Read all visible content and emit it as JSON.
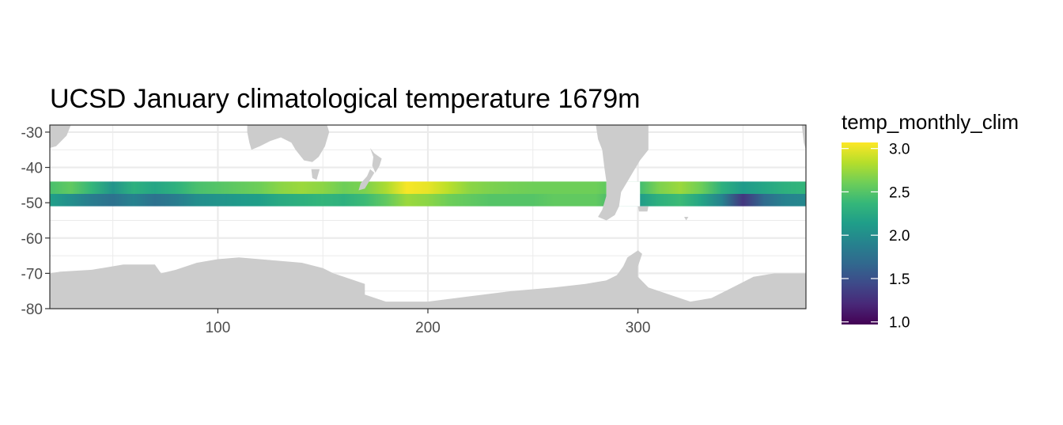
{
  "chart_data": {
    "type": "heatmap",
    "title": "UCSD January climatological temperature 1679m",
    "xlabel": "",
    "ylabel": "",
    "xlim": [
      20,
      380
    ],
    "ylim": [
      -80,
      -28
    ],
    "x_ticks": [
      100,
      200,
      300
    ],
    "x_tick_labels": [
      "100",
      "200",
      "300"
    ],
    "y_ticks": [
      -30,
      -40,
      -50,
      -60,
      -70,
      -80
    ],
    "y_tick_labels": [
      "-30",
      "-40",
      "-50",
      "-60",
      "-70",
      "-80"
    ],
    "grid": true,
    "land_color": "#cccccc",
    "band_lat_range": [
      -51,
      -44
    ],
    "band_missing_lon_ranges": [
      [
        285,
        301
      ]
    ],
    "temperature_profile": [
      {
        "lon": 20,
        "north": 2.45,
        "south": 2.15
      },
      {
        "lon": 30,
        "north": 2.55,
        "south": 2.0
      },
      {
        "lon": 40,
        "north": 2.35,
        "south": 1.85
      },
      {
        "lon": 50,
        "north": 2.05,
        "south": 1.75
      },
      {
        "lon": 60,
        "north": 2.3,
        "south": 1.9
      },
      {
        "lon": 70,
        "north": 2.2,
        "south": 1.75
      },
      {
        "lon": 80,
        "north": 2.3,
        "south": 1.85
      },
      {
        "lon": 90,
        "north": 2.45,
        "south": 2.0
      },
      {
        "lon": 100,
        "north": 2.5,
        "south": 2.05
      },
      {
        "lon": 110,
        "north": 2.55,
        "south": 2.1
      },
      {
        "lon": 120,
        "north": 2.6,
        "south": 2.15
      },
      {
        "lon": 130,
        "north": 2.7,
        "south": 2.25
      },
      {
        "lon": 140,
        "north": 2.75,
        "south": 2.3
      },
      {
        "lon": 150,
        "north": 2.7,
        "south": 2.35
      },
      {
        "lon": 160,
        "north": 2.6,
        "south": 2.3
      },
      {
        "lon": 170,
        "north": 2.65,
        "south": 2.4
      },
      {
        "lon": 180,
        "north": 2.8,
        "south": 2.55
      },
      {
        "lon": 190,
        "north": 3.05,
        "south": 2.75
      },
      {
        "lon": 200,
        "north": 3.0,
        "south": 2.7
      },
      {
        "lon": 210,
        "north": 2.85,
        "south": 2.6
      },
      {
        "lon": 220,
        "north": 2.7,
        "south": 2.55
      },
      {
        "lon": 230,
        "north": 2.65,
        "south": 2.5
      },
      {
        "lon": 240,
        "north": 2.62,
        "south": 2.5
      },
      {
        "lon": 250,
        "north": 2.6,
        "south": 2.5
      },
      {
        "lon": 260,
        "north": 2.6,
        "south": 2.55
      },
      {
        "lon": 270,
        "north": 2.6,
        "south": 2.55
      },
      {
        "lon": 280,
        "north": 2.6,
        "south": 2.55
      },
      {
        "lon": 300,
        "north": 2.4,
        "south": 2.1
      },
      {
        "lon": 310,
        "north": 2.65,
        "south": 2.3
      },
      {
        "lon": 320,
        "north": 2.75,
        "south": 2.4
      },
      {
        "lon": 330,
        "north": 2.6,
        "south": 2.2
      },
      {
        "lon": 340,
        "north": 2.3,
        "south": 1.9
      },
      {
        "lon": 350,
        "north": 2.1,
        "south": 1.3
      },
      {
        "lon": 360,
        "north": 2.2,
        "south": 1.7
      },
      {
        "lon": 370,
        "north": 2.3,
        "south": 1.9
      },
      {
        "lon": 380,
        "north": 2.35,
        "south": 1.95
      }
    ],
    "land_polygons": [
      {
        "name": "antarctica",
        "points": [
          [
            20,
            -70
          ],
          [
            25,
            -69.5
          ],
          [
            40,
            -69
          ],
          [
            55,
            -67.5
          ],
          [
            70,
            -67.5
          ],
          [
            73,
            -70
          ],
          [
            80,
            -69
          ],
          [
            90,
            -67
          ],
          [
            100,
            -66
          ],
          [
            110,
            -65.5
          ],
          [
            120,
            -66
          ],
          [
            130,
            -66.5
          ],
          [
            140,
            -67
          ],
          [
            150,
            -68.5
          ],
          [
            155,
            -70
          ],
          [
            160,
            -71
          ],
          [
            165,
            -72
          ],
          [
            170,
            -73
          ],
          [
            170,
            -76
          ],
          [
            180,
            -78
          ],
          [
            200,
            -78
          ],
          [
            220,
            -76.5
          ],
          [
            240,
            -75
          ],
          [
            260,
            -74
          ],
          [
            275,
            -73
          ],
          [
            285,
            -72
          ],
          [
            290,
            -70.5
          ],
          [
            293,
            -68
          ],
          [
            295,
            -65.5
          ],
          [
            300,
            -63.5
          ],
          [
            302,
            -64.5
          ],
          [
            300,
            -68
          ],
          [
            300,
            -71
          ],
          [
            305,
            -74
          ],
          [
            315,
            -76
          ],
          [
            325,
            -78
          ],
          [
            335,
            -77
          ],
          [
            345,
            -74
          ],
          [
            355,
            -71
          ],
          [
            365,
            -70
          ],
          [
            380,
            -70
          ],
          [
            380,
            -80
          ],
          [
            20,
            -80
          ]
        ]
      },
      {
        "name": "south-america",
        "points": [
          [
            280,
            -28
          ],
          [
            305,
            -28
          ],
          [
            305,
            -35
          ],
          [
            301,
            -38
          ],
          [
            298,
            -41
          ],
          [
            295,
            -44
          ],
          [
            292,
            -47
          ],
          [
            291,
            -51
          ],
          [
            289,
            -53.5
          ],
          [
            285,
            -55
          ],
          [
            281,
            -54
          ],
          [
            283,
            -52
          ],
          [
            285,
            -48
          ],
          [
            285,
            -44
          ],
          [
            284,
            -40
          ],
          [
            283,
            -35
          ],
          [
            281,
            -32
          ]
        ]
      },
      {
        "name": "australia",
        "points": [
          [
            114,
            -28
          ],
          [
            152,
            -28
          ],
          [
            153,
            -30
          ],
          [
            151,
            -34
          ],
          [
            148,
            -37
          ],
          [
            145,
            -38.5
          ],
          [
            141,
            -38
          ],
          [
            137,
            -35
          ],
          [
            135,
            -33
          ],
          [
            130,
            -31.5
          ],
          [
            125,
            -32.5
          ],
          [
            120,
            -34
          ],
          [
            116,
            -35
          ],
          [
            115,
            -33
          ],
          [
            114,
            -30
          ]
        ]
      },
      {
        "name": "africa-tip",
        "points": [
          [
            20,
            -28
          ],
          [
            30,
            -28
          ],
          [
            28,
            -31
          ],
          [
            23,
            -34
          ],
          [
            20,
            -34.5
          ]
        ]
      },
      {
        "name": "tasmania",
        "points": [
          [
            144.5,
            -40.5
          ],
          [
            148.5,
            -40.5
          ],
          [
            147,
            -43.5
          ],
          [
            145,
            -43
          ]
        ]
      },
      {
        "name": "new-zealand-north",
        "points": [
          [
            172.5,
            -34.5
          ],
          [
            174.5,
            -36
          ],
          [
            178,
            -37.5
          ],
          [
            177,
            -39.5
          ],
          [
            175,
            -41.5
          ],
          [
            173.5,
            -39.5
          ],
          [
            174,
            -37
          ]
        ]
      },
      {
        "name": "new-zealand-south",
        "points": [
          [
            172.5,
            -40.5
          ],
          [
            174.5,
            -41.5
          ],
          [
            172,
            -44
          ],
          [
            170,
            -46
          ],
          [
            167,
            -46.5
          ],
          [
            168,
            -44.5
          ],
          [
            171,
            -42.5
          ]
        ]
      },
      {
        "name": "falklands",
        "points": [
          [
            300,
            -51
          ],
          [
            305,
            -51
          ],
          [
            304.5,
            -52.5
          ],
          [
            300.5,
            -52.5
          ]
        ]
      },
      {
        "name": "south-georgia",
        "points": [
          [
            322,
            -54
          ],
          [
            324,
            -54
          ],
          [
            323,
            -55
          ]
        ]
      },
      {
        "name": "africa-east-sliver",
        "points": [
          [
            378,
            -28
          ],
          [
            380,
            -28
          ],
          [
            380,
            -35
          ],
          [
            379,
            -33
          ]
        ]
      }
    ],
    "legend": {
      "title": "temp_monthly_clim",
      "min": 0.97,
      "max": 3.07,
      "ticks": [
        1.0,
        1.5,
        2.0,
        2.5,
        3.0
      ],
      "tick_labels": [
        "1.0",
        "1.5",
        "2.0",
        "2.5",
        "3.0"
      ],
      "colors": [
        "#440154",
        "#482878",
        "#3e4989",
        "#31688e",
        "#26828e",
        "#1f9e89",
        "#35b779",
        "#6ece58",
        "#b5de2b",
        "#fde725"
      ],
      "placement": "right"
    },
    "panel_background": "#ffffff",
    "grid_color": "#ebebeb",
    "panel_border_color": "#333333"
  }
}
